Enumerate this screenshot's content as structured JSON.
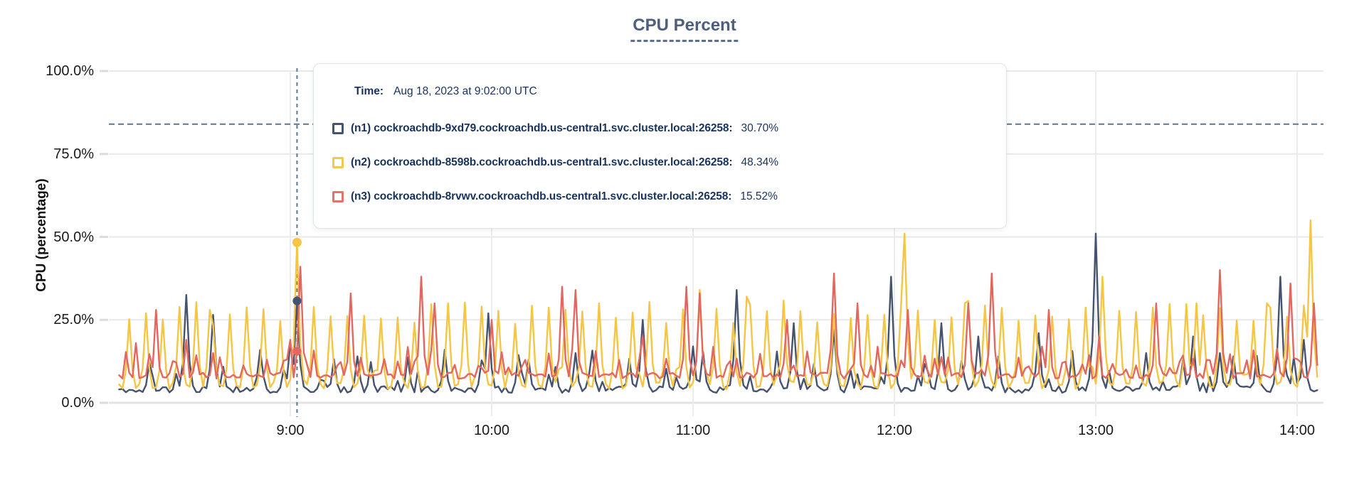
{
  "title": "CPU Percent",
  "tooltip": {
    "time_label": "Time:",
    "time_value": "Aug 18, 2023 at 9:02:00 UTC",
    "rows": [
      {
        "label": "(n1) cockroachdb-9xd79.cockroachdb.us-central1.svc.cluster.local:26258:",
        "value": "30.70%",
        "color": "#46536E"
      },
      {
        "label": "(n2) cockroachdb-8598b.cockroachdb.us-central1.svc.cluster.local:26258:",
        "value": "48.34%",
        "color": "#F2C94C"
      },
      {
        "label": "(n3) cockroachdb-8rvwv.cockroachdb.us-central1.svc.cluster.local:26258:",
        "value": "15.52%",
        "color": "#E5736B"
      }
    ]
  },
  "colors": {
    "title_text": "#4e5e7e",
    "axis_text": "#1a1a1a",
    "gridline": "#e9e9e9",
    "threshold_line": "#5d7787",
    "crosshair_line": "#5d7787",
    "tooltip_text": "#17325c",
    "tooltip_border": "#dfe4ea"
  },
  "chart_data": {
    "type": "line",
    "title": "CPU Percent",
    "xlabel": "",
    "ylabel": "CPU (percentage)",
    "ylim": [
      0,
      100
    ],
    "grid": true,
    "legend_position": "tooltip-overlay",
    "y_ticks": [
      {
        "value": 0,
        "label": "0.0%"
      },
      {
        "value": 25,
        "label": "25.0%"
      },
      {
        "value": 50,
        "label": "50.0%"
      },
      {
        "value": 75,
        "label": "75.0%"
      },
      {
        "value": 100,
        "label": "100.0%"
      }
    ],
    "x_ticks": [
      {
        "minute": 540,
        "label": "9:00"
      },
      {
        "minute": 600,
        "label": "10:00"
      },
      {
        "minute": 660,
        "label": "11:00"
      },
      {
        "minute": 720,
        "label": "12:00"
      },
      {
        "minute": 780,
        "label": "13:00"
      },
      {
        "minute": 840,
        "label": "14:00"
      }
    ],
    "x_range_minutes": [
      489,
      846
    ],
    "threshold_percent": 84,
    "crosshair": {
      "time_minutes": 542,
      "time_text": "Aug 18, 2023 at 9:02:00 UTC",
      "values": [
        30.7,
        48.34,
        15.52
      ]
    },
    "series": [
      {
        "name": "(n1) cockroachdb-9xd79.cockroachdb.us-central1.svc.cluster.local:26258",
        "color": "#46536E",
        "seed": 11,
        "baseline": 4.0,
        "noise": 1.0,
        "floor": 2.4,
        "comb": {
          "period": 11,
          "phase": 3,
          "min": 9,
          "max": 16
        },
        "peaks": [
          [
            509,
            32.5
          ],
          [
            517,
            26.5
          ],
          [
            538,
            10
          ],
          [
            540,
            18
          ],
          [
            542,
            30.7
          ],
          [
            560,
            14
          ],
          [
            586,
            16
          ],
          [
            599,
            27
          ],
          [
            611,
            13
          ],
          [
            625,
            15
          ],
          [
            645,
            25
          ],
          [
            660,
            17
          ],
          [
            673,
            34
          ],
          [
            690,
            24
          ],
          [
            702,
            22
          ],
          [
            719,
            38
          ],
          [
            734,
            24
          ],
          [
            745,
            20
          ],
          [
            763,
            21
          ],
          [
            780,
            51
          ],
          [
            795,
            15
          ],
          [
            809,
            20
          ],
          [
            821,
            14
          ],
          [
            835,
            38
          ],
          [
            842,
            19
          ]
        ],
        "fixed": [
          [
            542,
            30.7
          ]
        ]
      },
      {
        "name": "(n2) cockroachdb-8598b.cockroachdb.us-central1.svc.cluster.local:26258",
        "color": "#F5C543",
        "seed": 22,
        "baseline": 5.2,
        "noise": 1.4,
        "floor": 3.0,
        "comb": {
          "period": 5,
          "phase": 2,
          "min": 23,
          "max": 31
        },
        "peaks": [
          [
            516,
            28
          ],
          [
            542,
            48.34
          ],
          [
            587,
            30
          ],
          [
            662,
            34
          ],
          [
            676,
            32
          ],
          [
            723,
            51
          ],
          [
            741,
            30
          ],
          [
            782,
            38
          ],
          [
            810,
            30
          ],
          [
            831,
            30
          ],
          [
            844,
            55
          ]
        ],
        "fixed": [
          [
            542,
            48.34
          ]
        ]
      },
      {
        "name": "(n3) cockroachdb-8rvwv.cockroachdb.us-central1.svc.cluster.local:26258",
        "color": "#E3675F",
        "seed": 33,
        "baseline": 8.2,
        "noise": 0.9,
        "floor": 6.0,
        "comb": {
          "period": 7,
          "phase": 1,
          "min": 11,
          "max": 17
        },
        "peaks": [
          [
            494,
            18
          ],
          [
            500,
            28
          ],
          [
            509,
            19
          ],
          [
            517,
            15
          ],
          [
            540,
            19
          ],
          [
            543,
            41
          ],
          [
            558,
            33
          ],
          [
            579,
            38
          ],
          [
            583,
            30
          ],
          [
            600,
            25
          ],
          [
            621,
            35
          ],
          [
            625,
            34
          ],
          [
            645,
            20
          ],
          [
            658,
            35
          ],
          [
            662,
            33
          ],
          [
            688,
            25
          ],
          [
            702,
            39
          ],
          [
            709,
            30
          ],
          [
            724,
            28
          ],
          [
            742,
            30
          ],
          [
            749,
            39
          ],
          [
            766,
            28
          ],
          [
            781,
            20
          ],
          [
            798,
            30
          ],
          [
            817,
            40
          ],
          [
            838,
            36
          ],
          [
            845,
            30
          ]
        ],
        "fixed": [
          [
            542,
            15.52
          ]
        ]
      }
    ]
  }
}
